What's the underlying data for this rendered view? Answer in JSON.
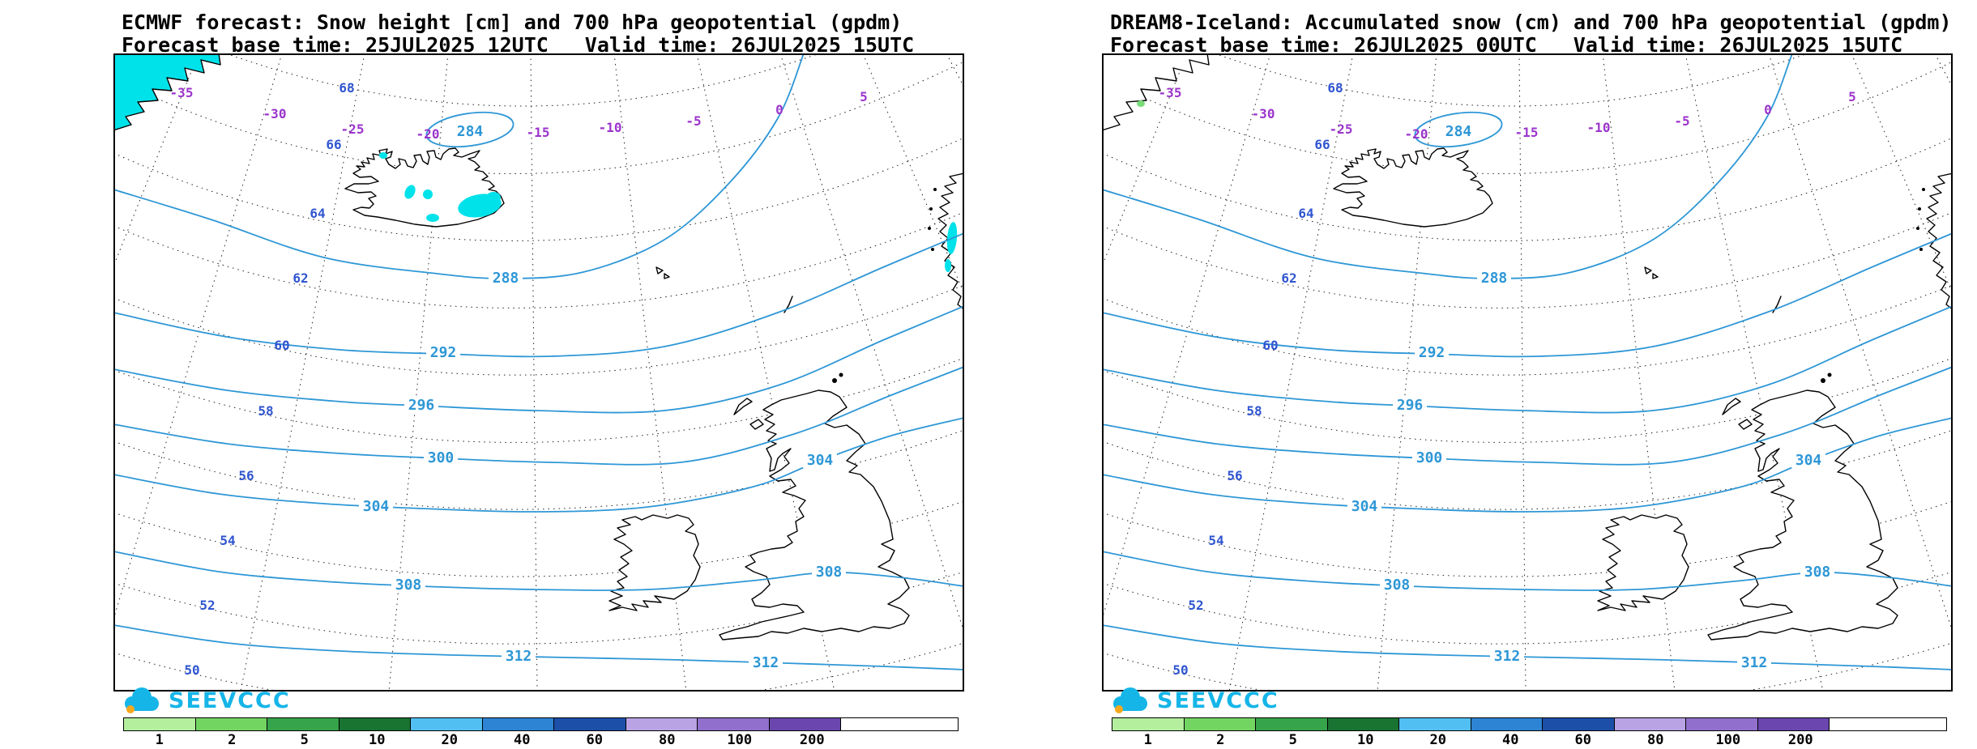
{
  "panels": [
    {
      "id": "ecmwf",
      "title": "ECMWF forecast: Snow height [cm] and 700 hPa geopotential (gpdm)",
      "base_time": "Forecast base time: 25JUL2025 12UTC",
      "valid_time": "Valid time: 26JUL2025 15UTC",
      "geopotential_contour_labels": [
        "284",
        "288",
        "292",
        "296",
        "300",
        "304",
        "304",
        "308",
        "308",
        "312",
        "312"
      ],
      "latitude_labels": [
        "68",
        "66",
        "64",
        "62",
        "60",
        "58",
        "56",
        "54",
        "52",
        "50"
      ],
      "longitude_labels": [
        "-35",
        "-30",
        "-25",
        "-20",
        "-15",
        "-10",
        "-5",
        "0",
        "5"
      ],
      "has_snow_shading": true
    },
    {
      "id": "dream8",
      "title": "DREAM8-Iceland: Accumulated snow (cm) and 700 hPa geopotential (gpdm)",
      "base_time": "Forecast base time: 26JUL2025 00UTC",
      "valid_time": "Valid time: 26JUL2025 15UTC",
      "geopotential_contour_labels": [
        "284",
        "288",
        "292",
        "296",
        "300",
        "304",
        "304",
        "308",
        "308",
        "312",
        "312"
      ],
      "latitude_labels": [
        "68",
        "66",
        "64",
        "62",
        "60",
        "58",
        "56",
        "54",
        "52",
        "50"
      ],
      "longitude_labels": [
        "-35",
        "-30",
        "-25",
        "-20",
        "-15",
        "-10",
        "-5",
        "0",
        "5"
      ],
      "has_snow_shading": false
    }
  ],
  "legend": {
    "values": [
      "1",
      "2",
      "5",
      "10",
      "20",
      "40",
      "60",
      "80",
      "100",
      "200"
    ],
    "colors": [
      "#b4ef9e",
      "#72d562",
      "#35a44a",
      "#197331",
      "#52bff2",
      "#2e84d4",
      "#1c4fa8",
      "#b9a3e4",
      "#9070cc",
      "#6a46ae"
    ]
  },
  "logo": {
    "text": "SEEVCCC",
    "color": "#16b5e8",
    "dot_color": "#f6a81e"
  },
  "colors": {
    "contour": "#2e97d6",
    "latitude_label": "#2f55d0",
    "longitude_label": "#9b35cc",
    "snow": "#00e2ea",
    "accumulated_speck": "#79dc79",
    "grid": "#222222",
    "coast": "#000000"
  }
}
